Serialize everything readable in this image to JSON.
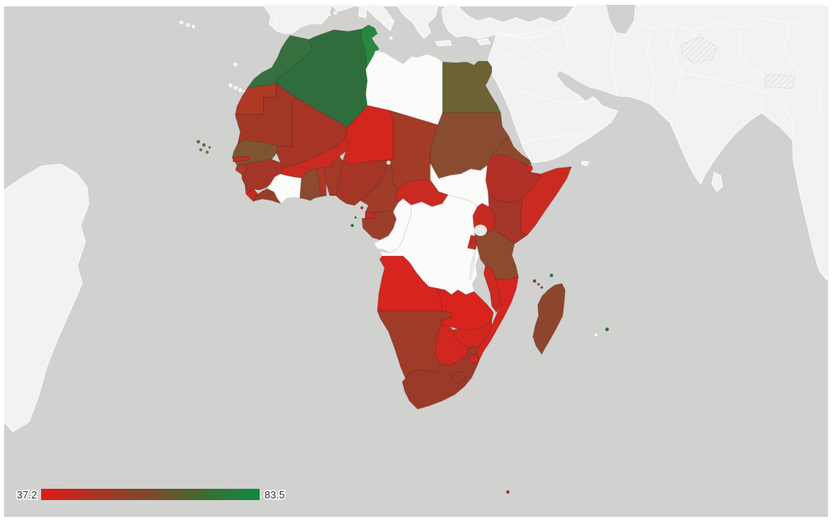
{
  "page": {
    "background": "#ffffff"
  },
  "map": {
    "ocean_color": "#d1d1d0",
    "background_land_color": "#f2f2f1",
    "background_border_color": "#fbfbfa",
    "no_data_color": "#fbfbfa",
    "no_data_border_color": "#d6d6d3",
    "disputed_hatch_color": "#d9d9d6"
  },
  "legend": {
    "min_label": "37.2",
    "max_label": "83.5",
    "gradient_stops": [
      "#df1b15",
      "#a83524",
      "#7c4a2b",
      "#3e6c33",
      "#0e8a41"
    ]
  },
  "chart_data": {
    "type": "choropleth_map",
    "map_region": "Africa",
    "color_scale": {
      "min": 37.2,
      "max": 83.5,
      "min_color": "#df1b15",
      "max_color": "#0e8a41",
      "legend_position": "bottom-left"
    },
    "regions": {
      "morocco": {
        "name": "Morocco",
        "color": "#36703f"
      },
      "algeria": {
        "name": "Algeria",
        "color": "#2f6e3c"
      },
      "tunisia": {
        "name": "Tunisia",
        "color": "#27873f"
      },
      "libya": {
        "name": "Libya",
        "color": null
      },
      "egypt": {
        "name": "Egypt",
        "color": "#6c6233"
      },
      "western-sahara": {
        "name": "Western Sahara",
        "color": "#ae3a26"
      },
      "mauritania": {
        "name": "Mauritania",
        "color": "#a33726"
      },
      "mali": {
        "name": "Mali",
        "color": "#a63526"
      },
      "niger": {
        "name": "Niger",
        "color": "#d2261e"
      },
      "chad": {
        "name": "Chad",
        "color": "#a33b27"
      },
      "sudan": {
        "name": "Sudan",
        "color": "#8a4c30"
      },
      "eritrea": {
        "name": "Eritrea",
        "color": "#8f482c"
      },
      "djibouti": {
        "name": "Djibouti",
        "color": "#c62b21"
      },
      "ethiopia": {
        "name": "Ethiopia",
        "color": "#b23027"
      },
      "somalia": {
        "name": "Somalia",
        "color": "#ca2b21"
      },
      "senegal": {
        "name": "Senegal",
        "color": "#7d5531"
      },
      "gambia": {
        "name": "Gambia",
        "color": "#c22d22"
      },
      "guinea-bissau": {
        "name": "Guinea-Bissau",
        "color": "#aa3b29"
      },
      "guinea": {
        "name": "Guinea",
        "color": "#a43627"
      },
      "sierra-leone": {
        "name": "Sierra Leone",
        "color": "#c02d23"
      },
      "liberia": {
        "name": "Liberia",
        "color": "#993d2a"
      },
      "cote-divoire": {
        "name": "Côte d'Ivoire",
        "color": null
      },
      "ghana": {
        "name": "Ghana",
        "color": "#8c4a2f"
      },
      "togo": {
        "name": "Togo",
        "color": "#ad3827"
      },
      "benin": {
        "name": "Benin",
        "color": "#a33a28"
      },
      "burkina-faso": {
        "name": "Burkina Faso",
        "color": "#ca2a21"
      },
      "nigeria": {
        "name": "Nigeria",
        "color": "#a53527"
      },
      "cameroon": {
        "name": "Cameroon",
        "color": "#9f3c2a"
      },
      "central-african-republic": {
        "name": "Central African Republic",
        "color": "#c92a21"
      },
      "south-sudan": {
        "name": "South Sudan",
        "color": null
      },
      "uganda": {
        "name": "Uganda",
        "color": "#c62a21"
      },
      "kenya": {
        "name": "Kenya",
        "color": "#a43528"
      },
      "equatorial-guinea": {
        "name": "Equatorial Guinea",
        "color": "#c62a21"
      },
      "gabon": {
        "name": "Gabon",
        "color": "#9c3e2b"
      },
      "congo": {
        "name": "Congo",
        "color": null
      },
      "dr-congo": {
        "name": "Democratic Republic of the Congo",
        "color": null
      },
      "rwanda": {
        "name": "Rwanda",
        "color": "#c42c21"
      },
      "burundi": {
        "name": "Burundi",
        "color": "#bd2f24"
      },
      "tanzania": {
        "name": "Tanzania",
        "color": "#8d4a2f"
      },
      "angola": {
        "name": "Angola",
        "color": "#d6251e"
      },
      "zambia": {
        "name": "Zambia",
        "color": "#d8241d"
      },
      "malawi": {
        "name": "Malawi",
        "color": "#cc2920"
      },
      "mozambique": {
        "name": "Mozambique",
        "color": "#d5251e"
      },
      "zimbabwe": {
        "name": "Zimbabwe",
        "color": "#d2271f"
      },
      "botswana": {
        "name": "Botswana",
        "color": "#d2271f"
      },
      "namibia": {
        "name": "Namibia",
        "color": "#9f3b28"
      },
      "south-africa": {
        "name": "South Africa",
        "color": "#9b3a29"
      },
      "lesotho": {
        "name": "Lesotho",
        "color": "#9b3a29"
      },
      "eswatini": {
        "name": "Eswatini",
        "color": "#c92a21"
      },
      "madagascar": {
        "name": "Madagascar",
        "color": "#8e452e"
      },
      "comoros": {
        "name": "Comoros",
        "color": "#8e452e"
      },
      "seychelles": {
        "name": "Seychelles",
        "color": "#1f7a3c"
      },
      "mauritius": {
        "name": "Mauritius",
        "color": "#1f7a3c"
      },
      "reunion": {
        "name": "Réunion",
        "color": null
      },
      "cape-verde": {
        "name": "Cape Verde",
        "color": "#57703a"
      },
      "sao-tome": {
        "name": "São Tomé and Príncipe",
        "color": "#2f6e3c"
      },
      "prince-edward-islands": {
        "name": "Prince Edward Islands (South Africa)",
        "color": "#9b3a29"
      }
    }
  }
}
